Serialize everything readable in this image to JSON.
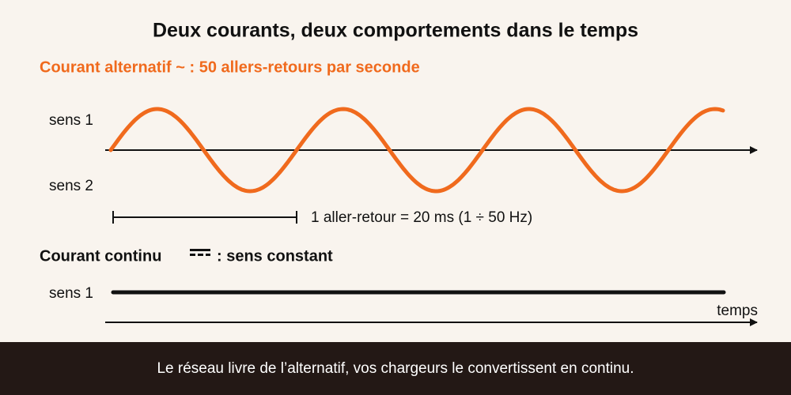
{
  "title": "Deux courants, deux comportements dans le temps",
  "ac": {
    "heading": "Courant alternatif ~ : 50 allers-retours par seconde",
    "label_top": "sens 1",
    "label_bottom": "sens 2",
    "period": "1 aller-retour = 20 ms (1 ÷ 50 Hz)"
  },
  "dc": {
    "heading_start": "Courant continu",
    "heading_end": ": sens constant",
    "label": "sens 1"
  },
  "axis_label": "temps",
  "footer": "Le réseau livre de l’alternatif, vos chargeurs le convertissent en continu."
}
